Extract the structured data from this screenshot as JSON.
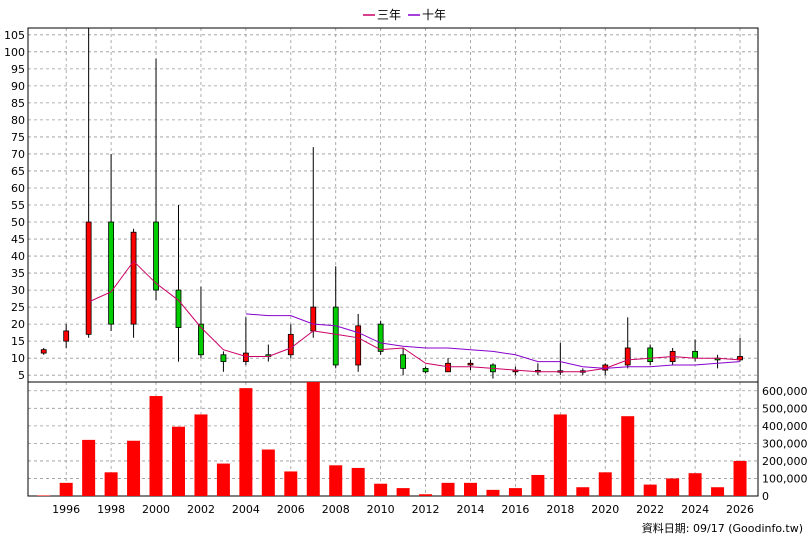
{
  "legend": {
    "three_year": "三年",
    "ten_year": "十年"
  },
  "colors": {
    "three_year_line": "#cc0066",
    "ten_year_line": "#8800cc",
    "up_candle": "#ff0000",
    "down_candle": "#00cc00",
    "volume_bar": "#ff0000",
    "grid": "#999999"
  },
  "footer": "資料日期: 09/17  (Goodinfo.tw)",
  "chart_data": [
    {
      "type": "candlestick",
      "x_ticks": [
        "1996",
        "1998",
        "2000",
        "2002",
        "2004",
        "2006",
        "2008",
        "2010",
        "2012",
        "2014",
        "2016",
        "2018",
        "2020",
        "2022",
        "2024",
        "2026"
      ],
      "y_ticks": [
        5,
        10,
        15,
        20,
        25,
        30,
        35,
        40,
        45,
        50,
        55,
        60,
        65,
        70,
        75,
        80,
        85,
        90,
        95,
        100,
        105
      ],
      "ylim": [
        3,
        107
      ],
      "xlim": [
        1994.3,
        2026.8
      ],
      "candles": [
        {
          "year": 1995,
          "open": 11.5,
          "close": 12.5,
          "high": 13,
          "low": 11
        },
        {
          "year": 1996,
          "open": 15,
          "close": 18,
          "high": 20,
          "low": 13
        },
        {
          "year": 1997,
          "open": 17,
          "close": 50,
          "high": 107,
          "low": 16
        },
        {
          "year": 1998,
          "open": 50,
          "close": 20,
          "high": 70,
          "low": 18
        },
        {
          "year": 1999,
          "open": 20,
          "close": 47,
          "high": 48,
          "low": 16
        },
        {
          "year": 2000,
          "open": 50,
          "close": 30,
          "high": 98,
          "low": 27
        },
        {
          "year": 2001,
          "open": 30,
          "close": 19,
          "high": 55,
          "low": 9
        },
        {
          "year": 2002,
          "open": 20,
          "close": 11,
          "high": 31,
          "low": 10
        },
        {
          "year": 2003,
          "open": 11,
          "close": 9,
          "high": 12,
          "low": 6
        },
        {
          "year": 2004,
          "open": 9,
          "close": 11.5,
          "high": 22,
          "low": 8
        },
        {
          "year": 2005,
          "open": 11,
          "close": 10.5,
          "high": 14,
          "low": 9
        },
        {
          "year": 2006,
          "open": 11,
          "close": 17,
          "high": 20,
          "low": 10
        },
        {
          "year": 2007,
          "open": 18,
          "close": 25,
          "high": 72,
          "low": 16
        },
        {
          "year": 2008,
          "open": 25,
          "close": 8,
          "high": 37,
          "low": 7
        },
        {
          "year": 2009,
          "open": 8,
          "close": 19.5,
          "high": 23,
          "low": 6
        },
        {
          "year": 2010,
          "open": 20,
          "close": 12,
          "high": 21,
          "low": 11
        },
        {
          "year": 2011,
          "open": 11,
          "close": 7,
          "high": 13,
          "low": 5
        },
        {
          "year": 2012,
          "open": 7,
          "close": 6,
          "high": 7.5,
          "low": 5.5
        },
        {
          "year": 2013,
          "open": 6,
          "close": 8.5,
          "high": 10,
          "low": 6
        },
        {
          "year": 2014,
          "open": 8,
          "close": 8.5,
          "high": 9.5,
          "low": 6.5
        },
        {
          "year": 2015,
          "open": 8,
          "close": 6,
          "high": 8.5,
          "low": 4
        },
        {
          "year": 2016,
          "open": 6,
          "close": 6.5,
          "high": 7.5,
          "low": 5
        },
        {
          "year": 2017,
          "open": 6.2,
          "close": 6.4,
          "high": 8.5,
          "low": 5
        },
        {
          "year": 2018,
          "open": 6.2,
          "close": 6.3,
          "high": 14.5,
          "low": 5
        },
        {
          "year": 2019,
          "open": 6.1,
          "close": 6.3,
          "high": 7,
          "low": 5
        },
        {
          "year": 2020,
          "open": 6.5,
          "close": 8,
          "high": 8.5,
          "low": 5
        },
        {
          "year": 2021,
          "open": 8,
          "close": 13,
          "high": 22,
          "low": 7
        },
        {
          "year": 2022,
          "open": 13,
          "close": 9,
          "high": 14,
          "low": 8
        },
        {
          "year": 2023,
          "open": 9,
          "close": 12,
          "high": 13,
          "low": 8
        },
        {
          "year": 2024,
          "open": 12,
          "close": 10,
          "high": 15.5,
          "low": 9
        },
        {
          "year": 2025,
          "open": 10,
          "close": 9.5,
          "high": 11,
          "low": 7
        },
        {
          "year": 2026,
          "open": 9.5,
          "close": 10.5,
          "high": 16,
          "low": 9
        }
      ],
      "series": [
        {
          "name": "三年",
          "x": [
            1997,
            1998,
            1999,
            2000,
            2001,
            2002,
            2003,
            2004,
            2005,
            2006,
            2007,
            2008,
            2009,
            2010,
            2011,
            2012,
            2013,
            2014,
            2015,
            2016,
            2017,
            2018,
            2019,
            2020,
            2021,
            2022,
            2023,
            2024,
            2025,
            2026
          ],
          "values": [
            26.5,
            29.5,
            38.5,
            32,
            27,
            19,
            12.5,
            10.5,
            10.5,
            13,
            18,
            17,
            16,
            12.5,
            13,
            8.5,
            7.5,
            7.5,
            7,
            6.5,
            6,
            6,
            6,
            7,
            9.5,
            10,
            10.5,
            10,
            10,
            9.5
          ]
        },
        {
          "name": "十年",
          "x": [
            2004,
            2005,
            2006,
            2007,
            2008,
            2009,
            2010,
            2011,
            2012,
            2013,
            2014,
            2015,
            2016,
            2017,
            2018,
            2019,
            2020,
            2021,
            2022,
            2023,
            2024,
            2025,
            2026
          ],
          "values": [
            23,
            22.5,
            22.5,
            20,
            19.5,
            17.5,
            14.5,
            13.5,
            13,
            13,
            12.5,
            12,
            11,
            9,
            9,
            7.5,
            7,
            7.5,
            7.5,
            8,
            8,
            8.5,
            9
          ]
        }
      ]
    },
    {
      "type": "bar",
      "y_ticks": [
        "0",
        "100,000",
        "200,000",
        "300,000",
        "400,000",
        "500,000",
        "600,000"
      ],
      "ylim": [
        0,
        650000
      ],
      "x": [
        1995,
        1996,
        1997,
        1998,
        1999,
        2000,
        2001,
        2002,
        2003,
        2004,
        2005,
        2006,
        2007,
        2008,
        2009,
        2010,
        2011,
        2012,
        2013,
        2014,
        2015,
        2016,
        2017,
        2018,
        2019,
        2020,
        2021,
        2022,
        2023,
        2024,
        2025,
        2026
      ],
      "values": [
        3000,
        75000,
        320000,
        135000,
        315000,
        570000,
        395000,
        465000,
        185000,
        615000,
        265000,
        140000,
        650000,
        175000,
        160000,
        70000,
        45000,
        10000,
        75000,
        75000,
        35000,
        45000,
        120000,
        465000,
        50000,
        135000,
        455000,
        65000,
        100000,
        130000,
        50000,
        200000
      ]
    }
  ]
}
